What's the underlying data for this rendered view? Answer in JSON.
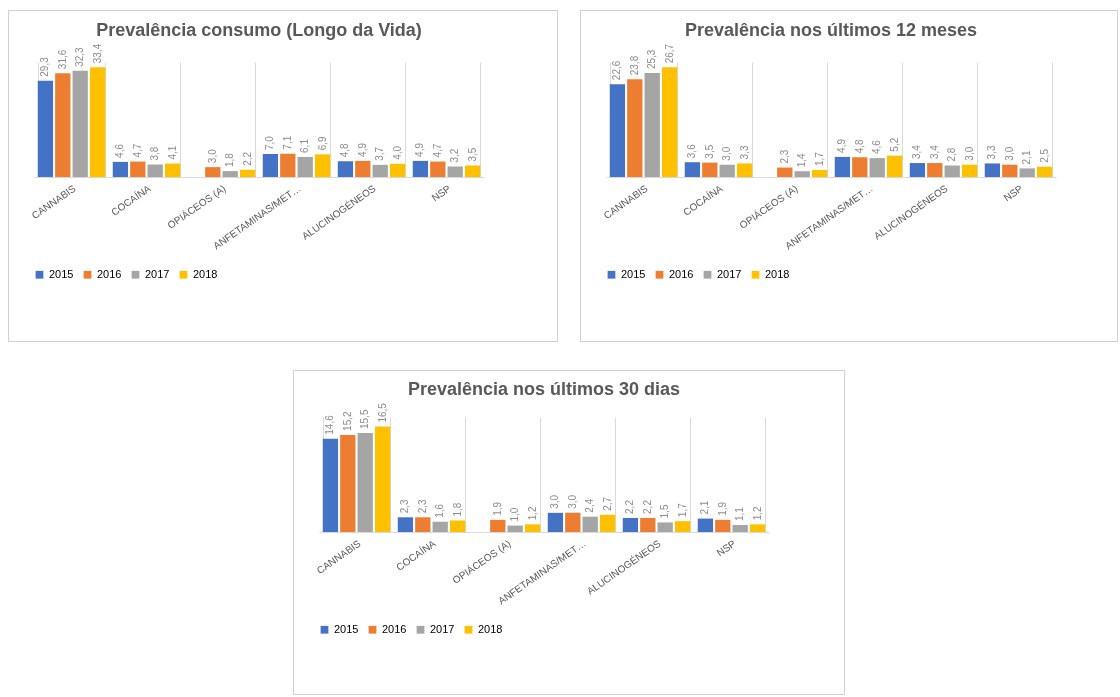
{
  "chart_data": [
    {
      "type": "bar",
      "title": "Prevalência consumo (Longo da Vida)",
      "categories": [
        "CANNABIS",
        "COCAÍNA",
        "OPIÁCEOS (A)",
        "ANFETAMINAS/MET…",
        "ALUCINOGÉNEOS",
        "NSP"
      ],
      "series": [
        {
          "name": "2015",
          "color": "#4472c4",
          "values": [
            29.3,
            4.6,
            null,
            7.0,
            4.8,
            4.9
          ],
          "value_labels": [
            "29,3",
            "4,6",
            null,
            "7,0",
            "4,8",
            "4,9"
          ]
        },
        {
          "name": "2016",
          "color": "#ed7d31",
          "values": [
            31.6,
            4.7,
            3.0,
            7.1,
            4.9,
            4.7
          ],
          "value_labels": [
            "31,6",
            "4,7",
            "3,0",
            "7,1",
            "4,9",
            "4,7"
          ]
        },
        {
          "name": "2017",
          "color": "#a5a5a5",
          "values": [
            32.3,
            3.8,
            1.8,
            6.1,
            3.7,
            3.2
          ],
          "value_labels": [
            "32,3",
            "3,8",
            "1,8",
            "6,1",
            "3,7",
            "3,2"
          ]
        },
        {
          "name": "2018",
          "color": "#ffc000",
          "values": [
            33.4,
            4.1,
            2.2,
            6.9,
            4.0,
            3.5
          ],
          "value_labels": [
            "33,4",
            "4,1",
            "2,2",
            "6,9",
            "4,0",
            "3,5"
          ]
        }
      ],
      "legend": "bottom",
      "grid": "x",
      "tick_labels": "x"
    },
    {
      "type": "bar",
      "title": "Prevalência nos últimos 12 meses",
      "categories": [
        "CANNABIS",
        "COCAÍNA",
        "OPIÁCEOS (A)",
        "ANFETAMINAS/MET…",
        "ALUCINOGÉNEOS",
        "NSP"
      ],
      "series": [
        {
          "name": "2015",
          "color": "#4472c4",
          "values": [
            22.6,
            3.6,
            null,
            4.9,
            3.4,
            3.3
          ],
          "value_labels": [
            "22,6",
            "3,6",
            null,
            "4,9",
            "3,4",
            "3,3"
          ]
        },
        {
          "name": "2016",
          "color": "#ed7d31",
          "values": [
            23.8,
            3.5,
            2.3,
            4.8,
            3.4,
            3.0
          ],
          "value_labels": [
            "23,8",
            "3,5",
            "2,3",
            "4,8",
            "3,4",
            "3,0"
          ]
        },
        {
          "name": "2017",
          "color": "#a5a5a5",
          "values": [
            25.3,
            3.0,
            1.4,
            4.6,
            2.8,
            2.1
          ],
          "value_labels": [
            "25,3",
            "3,0",
            "1,4",
            "4,6",
            "2,8",
            "2,1"
          ]
        },
        {
          "name": "2018",
          "color": "#ffc000",
          "values": [
            26.7,
            3.3,
            1.7,
            5.2,
            3.0,
            2.5
          ],
          "value_labels": [
            "26,7",
            "3,3",
            "1,7",
            "5,2",
            "3,0",
            "2,5"
          ]
        }
      ],
      "legend": "bottom",
      "grid": "x",
      "tick_labels": "x"
    },
    {
      "type": "bar",
      "title": "Prevalência nos últimos 30 dias",
      "categories": [
        "CANNABIS",
        "COCAÍNA",
        "OPIÁCEOS (A)",
        "ANFETAMINAS/MET…",
        "ALUCINOGÉNEOS",
        "NSP"
      ],
      "series": [
        {
          "name": "2015",
          "color": "#4472c4",
          "values": [
            14.6,
            2.3,
            null,
            3.0,
            2.2,
            2.1
          ],
          "value_labels": [
            "14,6",
            "2,3",
            null,
            "3,0",
            "2,2",
            "2,1"
          ]
        },
        {
          "name": "2016",
          "color": "#ed7d31",
          "values": [
            15.2,
            2.3,
            1.9,
            3.0,
            2.2,
            1.9
          ],
          "value_labels": [
            "15,2",
            "2,3",
            "1,9",
            "3,0",
            "2,2",
            "1,9"
          ]
        },
        {
          "name": "2017",
          "color": "#a5a5a5",
          "values": [
            15.5,
            1.6,
            1.0,
            2.4,
            1.5,
            1.1
          ],
          "value_labels": [
            "15,5",
            "1,6",
            "1,0",
            "2,4",
            "1,5",
            "1,1"
          ]
        },
        {
          "name": "2018",
          "color": "#ffc000",
          "values": [
            16.5,
            1.8,
            1.2,
            2.7,
            1.7,
            1.2
          ],
          "value_labels": [
            "16,5",
            "1,8",
            "1,2",
            "2,7",
            "1,7",
            "1,2"
          ]
        }
      ],
      "legend": "bottom",
      "grid": "x",
      "tick_labels": "x"
    }
  ]
}
